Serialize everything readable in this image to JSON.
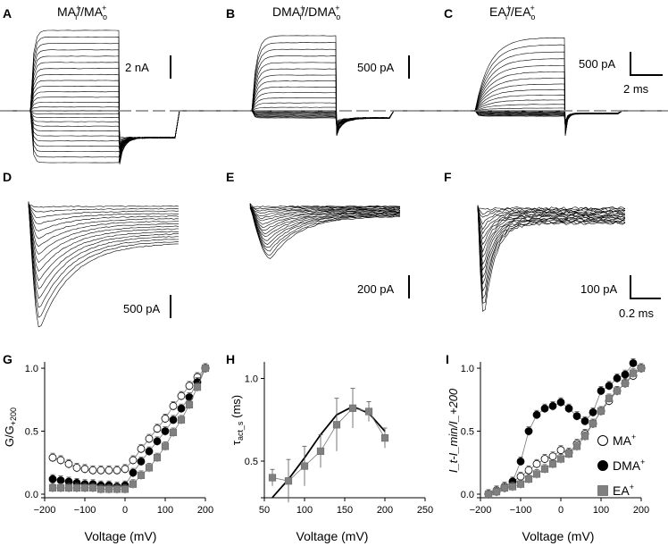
{
  "panels": {
    "A": {
      "letter": "A",
      "title_base": "MA",
      "title_sup1": "+",
      "title_sub1": "i",
      "title_mid": "//MA",
      "title_sub2": "o",
      "title_sup2": "+",
      "scale": "2 nA"
    },
    "B": {
      "letter": "B",
      "title_base": "DMA",
      "title_sup1": "+",
      "title_sub1": "i",
      "title_mid": "//DMA",
      "title_sub2": "o",
      "title_sup2": "+",
      "scale": "500 pA"
    },
    "C": {
      "letter": "C",
      "title_base": "EA",
      "title_sup1": "+",
      "title_sub1": "i",
      "title_mid": "//EA",
      "title_sub2": "o",
      "title_sup2": "+",
      "scale": "500 pA",
      "time_scale": "2 ms"
    },
    "D": {
      "letter": "D",
      "scale": "500 pA"
    },
    "E": {
      "letter": "E",
      "scale": "200 pA"
    },
    "F": {
      "letter": "F",
      "scale": "100 pA",
      "time_scale": "0.2 ms"
    },
    "G": {
      "letter": "G"
    },
    "H": {
      "letter": "H"
    },
    "I": {
      "letter": "I"
    }
  },
  "legend": {
    "ma": {
      "label": "MA",
      "sup": "+"
    },
    "dma": {
      "label": "DMA",
      "sup": "+"
    },
    "ea": {
      "label": "EA",
      "sup": "+"
    }
  },
  "colors": {
    "trace": "#000000",
    "ma_marker": "#ffffff",
    "dma_marker": "#000000",
    "ea_marker": "#808080",
    "dashed": "#808080"
  },
  "chart_data": [
    {
      "id": "G",
      "type": "scatter",
      "xlabel": "Voltage (mV)",
      "ylabel": {
        "base": "G/G",
        "sub": "+200"
      },
      "xlim": [
        -200,
        200
      ],
      "ylim": [
        0,
        1.05
      ],
      "xticks": [
        -200,
        -100,
        0,
        100,
        200
      ],
      "xtick_labels": [
        "−200",
        "−100",
        "0",
        "100",
        "200"
      ],
      "yticks": [
        0,
        0.5,
        1
      ],
      "ytick_labels": [
        "0.0",
        "0.5",
        "1.0"
      ],
      "series": [
        {
          "key": "ma",
          "marker": "circle",
          "x": [
            -180,
            -160,
            -140,
            -120,
            -100,
            -80,
            -60,
            -40,
            -20,
            0,
            20,
            40,
            60,
            80,
            100,
            120,
            140,
            160,
            180,
            200
          ],
          "y": [
            0.29,
            0.27,
            0.24,
            0.21,
            0.2,
            0.19,
            0.19,
            0.19,
            0.19,
            0.2,
            0.27,
            0.36,
            0.44,
            0.52,
            0.6,
            0.7,
            0.78,
            0.86,
            0.93,
            1.0
          ]
        },
        {
          "key": "dma",
          "marker": "circle",
          "x": [
            -180,
            -160,
            -140,
            -120,
            -100,
            -80,
            -60,
            -40,
            -20,
            0,
            20,
            40,
            60,
            80,
            100,
            120,
            140,
            160,
            180,
            200
          ],
          "y": [
            0.12,
            0.11,
            0.1,
            0.09,
            0.08,
            0.08,
            0.07,
            0.07,
            0.06,
            0.07,
            0.17,
            0.26,
            0.34,
            0.42,
            0.5,
            0.59,
            0.68,
            0.77,
            0.89,
            1.0
          ]
        },
        {
          "key": "ea",
          "marker": "square",
          "x": [
            -180,
            -160,
            -140,
            -120,
            -100,
            -80,
            -60,
            -40,
            -20,
            0,
            20,
            40,
            60,
            80,
            100,
            120,
            140,
            160,
            180,
            200
          ],
          "y": [
            0.05,
            0.05,
            0.05,
            0.05,
            0.05,
            0.05,
            0.04,
            0.04,
            0.04,
            0.04,
            0.08,
            0.15,
            0.21,
            0.29,
            0.38,
            0.49,
            0.59,
            0.71,
            0.85,
            1.0
          ]
        }
      ]
    },
    {
      "id": "H",
      "type": "scatter",
      "xlabel": "Voltage (mV)",
      "ylabel": {
        "base": "τ",
        "sub": "act_s",
        "rest": " (ms)"
      },
      "xlim": [
        50,
        250
      ],
      "ylim": [
        0.3,
        1.1
      ],
      "xticks": [
        50,
        100,
        150,
        200,
        250
      ],
      "xtick_labels": [
        "50",
        "100",
        "150",
        "200",
        "250"
      ],
      "yticks": [
        0.5,
        1
      ],
      "ytick_labels": [
        "0.5",
        "1.0"
      ],
      "series": [
        {
          "key": "ea",
          "marker": "square",
          "x": [
            60,
            80,
            100,
            120,
            140,
            160,
            180,
            200
          ],
          "y": [
            0.4,
            0.38,
            0.47,
            0.56,
            0.72,
            0.82,
            0.8,
            0.64
          ],
          "err": [
            0.05,
            0.13,
            0.12,
            0.1,
            0.16,
            0.12,
            0.06,
            0.06
          ]
        }
      ],
      "fit": {
        "x": [
          60,
          80,
          100,
          120,
          140,
          160,
          180,
          200
        ],
        "y": [
          0.28,
          0.39,
          0.52,
          0.66,
          0.78,
          0.83,
          0.79,
          0.68
        ]
      }
    },
    {
      "id": "I",
      "type": "scatter",
      "xlabel": "Voltage (mV)",
      "ylabel": {
        "text": "I_t-I_min/I_+200"
      },
      "xlim": [
        -200,
        200
      ],
      "ylim": [
        0,
        1.05
      ],
      "xticks": [
        -200,
        -100,
        0,
        100,
        200
      ],
      "xtick_labels": [
        "−200",
        "−100",
        "0",
        "100",
        "200"
      ],
      "yticks": [
        0,
        0.5,
        1
      ],
      "ytick_labels": [
        "0.0",
        "0.5",
        "1.0"
      ],
      "series": [
        {
          "key": "ma",
          "marker": "circle",
          "x": [
            -180,
            -160,
            -140,
            -120,
            -100,
            -80,
            -60,
            -40,
            -20,
            0,
            20,
            40,
            60,
            80,
            100,
            120,
            140,
            160,
            180,
            200
          ],
          "y": [
            0.0,
            0.03,
            0.06,
            0.1,
            0.14,
            0.19,
            0.24,
            0.28,
            0.3,
            0.35,
            0.33,
            0.4,
            0.48,
            0.56,
            0.66,
            0.74,
            0.82,
            0.88,
            0.94,
            1.0
          ]
        },
        {
          "key": "dma",
          "marker": "circle",
          "x": [
            -180,
            -160,
            -140,
            -120,
            -100,
            -80,
            -60,
            -40,
            -20,
            0,
            20,
            40,
            60,
            80,
            100,
            120,
            140,
            160,
            180,
            200
          ],
          "y": [
            0.0,
            0.02,
            0.05,
            0.1,
            0.26,
            0.5,
            0.63,
            0.68,
            0.7,
            0.73,
            0.68,
            0.62,
            0.58,
            0.65,
            0.82,
            0.86,
            0.92,
            0.95,
            1.04,
            1.0
          ]
        },
        {
          "key": "ea",
          "marker": "square",
          "x": [
            -180,
            -160,
            -140,
            -120,
            -100,
            -80,
            -60,
            -40,
            -20,
            0,
            20,
            40,
            60,
            80,
            100,
            120,
            140,
            160,
            180,
            200
          ],
          "y": [
            0.0,
            0.02,
            0.05,
            0.06,
            0.08,
            0.12,
            0.16,
            0.2,
            0.24,
            0.28,
            0.32,
            0.38,
            0.46,
            0.56,
            0.66,
            0.76,
            0.82,
            0.88,
            0.96,
            1.0
          ]
        }
      ]
    }
  ]
}
